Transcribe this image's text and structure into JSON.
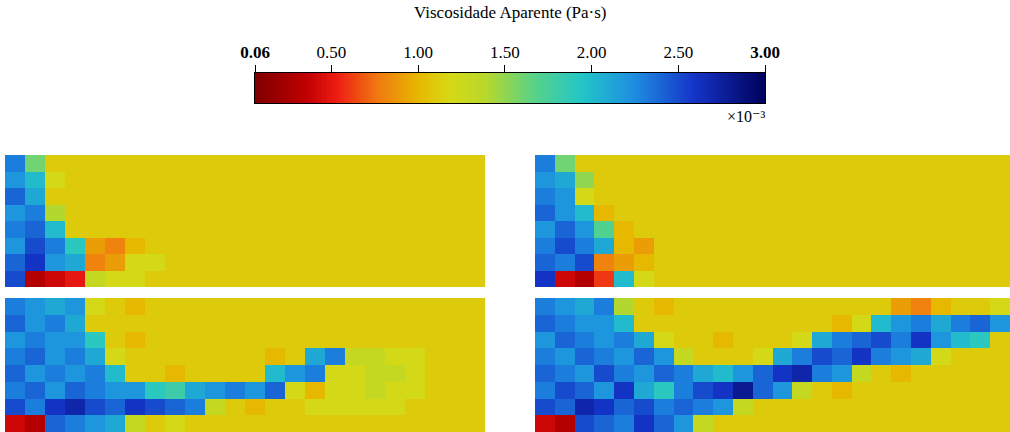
{
  "chart_data": {
    "type": "heatmap",
    "title": "Viscosidade Aparente (Pa·s)",
    "tick_labels": false,
    "colorbar": {
      "range": [
        0.06,
        3.0
      ],
      "ticks": [
        0.06,
        {
          "value": 0.5,
          "label": "0.50"
        },
        {
          "value": 1.0,
          "label": "1.00"
        },
        {
          "value": 1.5,
          "label": "1.50"
        },
        {
          "value": 2.0,
          "label": "2.00"
        },
        {
          "value": 2.5,
          "label": "2.50"
        },
        {
          "value": 3.0,
          "label": "3.00"
        }
      ],
      "scale_label": "×10⁻³"
    },
    "panels": [
      {
        "cells": [
          [
            2.3,
            1.6,
            1.1,
            1.1,
            1.1,
            1.1,
            1.1,
            1.1,
            1.1,
            1.1,
            1.1,
            1.1,
            1.1,
            1.1,
            1.1,
            1.1,
            1.1,
            1.1,
            1.1,
            1.1,
            1.1,
            1.1,
            1.1,
            1.1
          ],
          [
            2.2,
            2.0,
            1.2,
            1.1,
            1.1,
            1.1,
            1.1,
            1.1,
            1.1,
            1.1,
            1.1,
            1.1,
            1.1,
            1.1,
            1.1,
            1.1,
            1.1,
            1.1,
            1.1,
            1.1,
            1.1,
            1.1,
            1.1,
            1.1
          ],
          [
            2.4,
            2.1,
            1.1,
            1.1,
            1.1,
            1.1,
            1.1,
            1.1,
            1.1,
            1.1,
            1.1,
            1.1,
            1.1,
            1.1,
            1.1,
            1.1,
            1.1,
            1.1,
            1.1,
            1.1,
            1.1,
            1.1,
            1.1,
            1.1
          ],
          [
            2.2,
            2.3,
            1.4,
            1.1,
            1.1,
            1.1,
            1.1,
            1.1,
            1.1,
            1.1,
            1.1,
            1.1,
            1.1,
            1.1,
            1.1,
            1.1,
            1.1,
            1.1,
            1.1,
            1.1,
            1.1,
            1.1,
            1.1,
            1.1
          ],
          [
            2.3,
            2.4,
            2.0,
            1.1,
            1.1,
            1.1,
            1.1,
            1.1,
            1.1,
            1.1,
            1.1,
            1.1,
            1.1,
            1.1,
            1.1,
            1.1,
            1.1,
            1.1,
            1.1,
            1.1,
            1.1,
            1.1,
            1.1,
            1.1
          ],
          [
            2.2,
            2.5,
            2.3,
            1.9,
            0.9,
            0.8,
            1.0,
            1.1,
            1.1,
            1.1,
            1.1,
            1.1,
            1.1,
            1.1,
            1.1,
            1.1,
            1.1,
            1.1,
            1.1,
            1.1,
            1.1,
            1.1,
            1.1,
            1.1
          ],
          [
            2.4,
            2.6,
            2.2,
            2.1,
            0.8,
            0.9,
            1.2,
            1.2,
            1.1,
            1.1,
            1.1,
            1.1,
            1.1,
            1.1,
            1.1,
            1.1,
            1.1,
            1.1,
            1.1,
            1.1,
            1.1,
            1.1,
            1.1,
            1.1
          ],
          [
            2.5,
            0.3,
            0.4,
            0.5,
            1.3,
            1.2,
            1.2,
            1.1,
            1.1,
            1.1,
            1.1,
            1.1,
            1.1,
            1.1,
            1.1,
            1.1,
            1.1,
            1.1,
            1.1,
            1.1,
            1.1,
            1.1,
            1.1,
            1.1
          ]
        ]
      },
      {
        "cells": [
          [
            2.3,
            1.6,
            1.1,
            1.1,
            1.1,
            1.1,
            1.1,
            1.1,
            1.1,
            1.1,
            1.1,
            1.1,
            1.1,
            1.1,
            1.1,
            1.1,
            1.1,
            1.1,
            1.1,
            1.1,
            1.1,
            1.1,
            1.1,
            1.1
          ],
          [
            2.2,
            2.1,
            1.5,
            1.1,
            1.1,
            1.1,
            1.1,
            1.1,
            1.1,
            1.1,
            1.1,
            1.1,
            1.1,
            1.1,
            1.1,
            1.1,
            1.1,
            1.1,
            1.1,
            1.1,
            1.1,
            1.1,
            1.1,
            1.1
          ],
          [
            2.3,
            2.2,
            1.2,
            1.1,
            1.1,
            1.1,
            1.1,
            1.1,
            1.1,
            1.1,
            1.1,
            1.1,
            1.1,
            1.1,
            1.1,
            1.1,
            1.1,
            1.1,
            1.1,
            1.1,
            1.1,
            1.1,
            1.1,
            1.1
          ],
          [
            2.4,
            2.2,
            2.0,
            1.0,
            1.1,
            1.1,
            1.1,
            1.1,
            1.1,
            1.1,
            1.1,
            1.1,
            1.1,
            1.1,
            1.1,
            1.1,
            1.1,
            1.1,
            1.1,
            1.1,
            1.1,
            1.1,
            1.1,
            1.1
          ],
          [
            2.2,
            2.4,
            2.2,
            1.7,
            1.0,
            1.1,
            1.1,
            1.1,
            1.1,
            1.1,
            1.1,
            1.1,
            1.1,
            1.1,
            1.1,
            1.1,
            1.1,
            1.1,
            1.1,
            1.1,
            1.1,
            1.1,
            1.1,
            1.1
          ],
          [
            2.3,
            2.5,
            2.3,
            2.1,
            1.0,
            0.9,
            1.1,
            1.1,
            1.1,
            1.1,
            1.1,
            1.1,
            1.1,
            1.1,
            1.1,
            1.1,
            1.1,
            1.1,
            1.1,
            1.1,
            1.1,
            1.1,
            1.1,
            1.1
          ],
          [
            2.4,
            2.3,
            2.5,
            0.8,
            0.9,
            1.0,
            1.1,
            1.1,
            1.1,
            1.1,
            1.1,
            1.1,
            1.1,
            1.1,
            1.1,
            1.1,
            1.1,
            1.1,
            1.1,
            1.1,
            1.1,
            1.1,
            1.1,
            1.1
          ],
          [
            2.6,
            0.4,
            0.3,
            0.6,
            2.0,
            1.2,
            1.1,
            1.1,
            1.1,
            1.1,
            1.1,
            1.1,
            1.1,
            1.1,
            1.1,
            1.1,
            1.1,
            1.1,
            1.1,
            1.1,
            1.1,
            1.1,
            1.1,
            1.1
          ]
        ]
      },
      {
        "cells": [
          [
            2.3,
            2.2,
            2.1,
            2.2,
            1.2,
            1.1,
            1.0,
            1.1,
            1.1,
            1.1,
            1.1,
            1.1,
            1.1,
            1.1,
            1.1,
            1.1,
            1.1,
            1.1,
            1.1,
            1.1,
            1.1,
            1.1,
            1.1,
            1.1
          ],
          [
            2.4,
            2.2,
            2.3,
            2.1,
            1.1,
            1.1,
            1.1,
            1.1,
            1.1,
            1.1,
            1.1,
            1.1,
            1.1,
            1.1,
            1.1,
            1.1,
            1.1,
            1.1,
            1.1,
            1.1,
            1.1,
            1.1,
            1.1,
            1.1
          ],
          [
            2.2,
            2.3,
            2.2,
            2.2,
            1.9,
            1.1,
            1.0,
            1.1,
            1.1,
            1.1,
            1.1,
            1.1,
            1.1,
            1.1,
            1.1,
            1.1,
            1.1,
            1.1,
            1.1,
            1.1,
            1.1,
            1.1,
            1.1,
            1.1
          ],
          [
            2.3,
            2.4,
            2.2,
            2.3,
            2.1,
            1.2,
            1.1,
            1.1,
            1.1,
            1.1,
            1.1,
            1.1,
            1.1,
            1.0,
            1.1,
            2.1,
            2.3,
            1.3,
            1.3,
            1.2,
            1.2,
            1.1,
            1.1,
            1.1
          ],
          [
            2.4,
            2.2,
            2.3,
            2.2,
            2.3,
            2.0,
            1.1,
            1.1,
            1.0,
            1.1,
            1.1,
            1.1,
            1.1,
            2.0,
            2.2,
            2.3,
            1.2,
            1.2,
            1.3,
            1.3,
            1.2,
            1.1,
            1.1,
            1.1
          ],
          [
            2.3,
            2.4,
            2.2,
            2.4,
            2.3,
            2.2,
            2.2,
            1.9,
            1.8,
            2.1,
            2.2,
            2.3,
            2.2,
            2.4,
            1.2,
            1.0,
            1.2,
            1.2,
            1.3,
            1.2,
            1.2,
            1.1,
            1.1,
            1.1
          ],
          [
            2.5,
            2.3,
            2.6,
            2.7,
            2.5,
            2.4,
            2.6,
            2.5,
            2.4,
            2.3,
            1.3,
            1.1,
            1.0,
            1.1,
            1.1,
            1.2,
            1.2,
            1.2,
            1.2,
            1.2,
            1.1,
            1.1,
            1.1,
            1.1
          ],
          [
            0.4,
            0.3,
            2.4,
            2.3,
            2.2,
            2.1,
            1.3,
            1.1,
            1.2,
            1.1,
            1.1,
            1.1,
            1.1,
            1.1,
            1.1,
            1.1,
            1.1,
            1.1,
            1.1,
            1.1,
            1.1,
            1.1,
            1.1,
            1.1
          ]
        ]
      },
      {
        "cells": [
          [
            2.3,
            2.2,
            2.1,
            2.3,
            1.4,
            1.1,
            1.0,
            1.1,
            1.1,
            1.1,
            1.1,
            1.1,
            1.1,
            1.1,
            1.1,
            1.1,
            1.1,
            1.1,
            0.9,
            0.8,
            1.0,
            1.1,
            1.1,
            1.2
          ],
          [
            2.4,
            2.3,
            2.2,
            2.2,
            2.0,
            1.1,
            1.1,
            1.1,
            1.1,
            1.1,
            1.1,
            1.1,
            1.1,
            1.1,
            1.1,
            1.0,
            1.2,
            2.0,
            2.2,
            2.3,
            2.1,
            2.3,
            2.4,
            2.2
          ],
          [
            2.2,
            2.4,
            2.3,
            2.2,
            2.3,
            2.1,
            1.2,
            1.1,
            1.1,
            1.0,
            1.1,
            1.1,
            1.1,
            1.2,
            2.1,
            2.3,
            2.4,
            2.5,
            2.3,
            2.6,
            2.2,
            2.0,
            1.9,
            1.1
          ],
          [
            2.3,
            2.2,
            2.4,
            2.3,
            2.2,
            2.4,
            2.2,
            1.3,
            1.1,
            1.1,
            1.1,
            1.2,
            2.1,
            2.3,
            2.5,
            2.4,
            2.6,
            2.3,
            2.2,
            2.1,
            1.2,
            1.1,
            1.1,
            1.1
          ],
          [
            2.4,
            2.3,
            2.2,
            2.5,
            2.3,
            2.2,
            2.4,
            2.3,
            2.1,
            2.0,
            2.2,
            2.4,
            2.6,
            2.7,
            2.3,
            2.2,
            1.3,
            1.1,
            1.0,
            1.1,
            1.1,
            1.1,
            1.1,
            1.1
          ],
          [
            2.3,
            2.5,
            2.4,
            2.2,
            2.6,
            2.1,
            1.9,
            2.3,
            2.5,
            2.6,
            2.8,
            2.4,
            2.2,
            1.3,
            1.1,
            1.0,
            1.1,
            1.1,
            1.1,
            1.1,
            1.1,
            1.1,
            1.1,
            1.1
          ],
          [
            2.5,
            2.4,
            2.7,
            2.6,
            2.4,
            2.5,
            2.3,
            2.4,
            2.3,
            2.2,
            1.3,
            1.1,
            1.1,
            1.1,
            1.1,
            1.1,
            1.1,
            1.1,
            1.1,
            1.1,
            1.1,
            1.1,
            1.1,
            1.1
          ],
          [
            0.4,
            0.3,
            2.5,
            2.4,
            2.3,
            2.6,
            2.4,
            2.2,
            1.3,
            1.1,
            1.1,
            1.1,
            1.1,
            1.1,
            1.1,
            1.1,
            1.1,
            1.1,
            1.1,
            1.1,
            1.1,
            1.1,
            1.1,
            1.1
          ]
        ]
      }
    ]
  }
}
